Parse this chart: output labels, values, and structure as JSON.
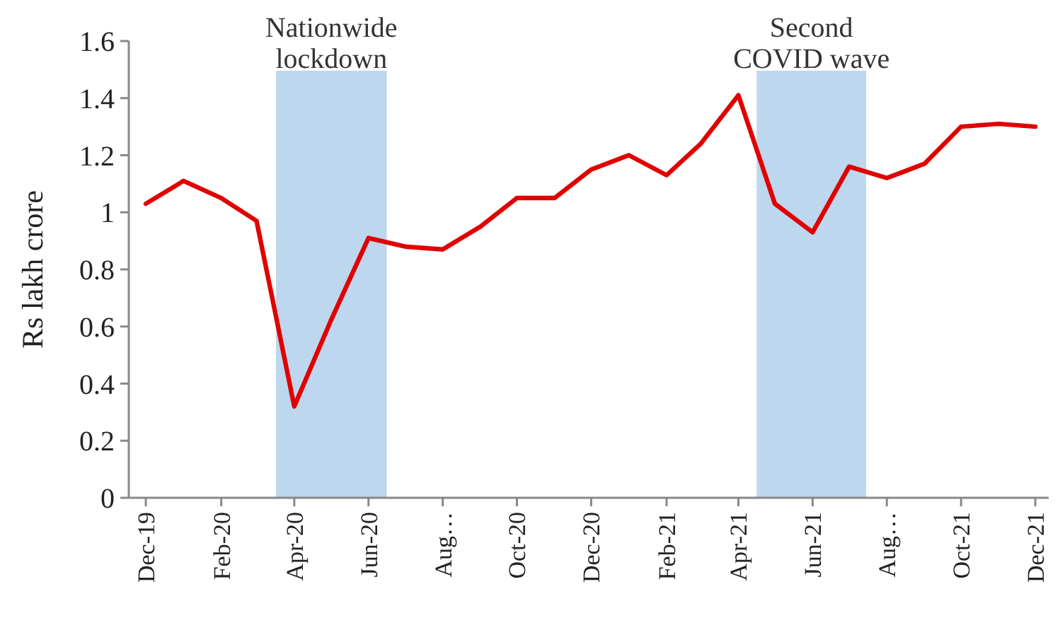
{
  "chart_data": {
    "type": "line",
    "ylabel": "Rs lakh crore",
    "x": [
      "2019-12",
      "2020-01",
      "2020-02",
      "2020-03",
      "2020-04",
      "2020-05",
      "2020-06",
      "2020-07",
      "2020-08",
      "2020-09",
      "2020-10",
      "2020-11",
      "2020-12",
      "2021-01",
      "2021-02",
      "2021-03",
      "2021-04",
      "2021-05",
      "2021-06",
      "2021-07",
      "2021-08",
      "2021-09",
      "2021-10",
      "2021-11",
      "2021-12"
    ],
    "series": [
      {
        "color": "#e00000",
        "values": [
          1.03,
          1.11,
          1.05,
          0.97,
          0.32,
          0.62,
          0.91,
          0.88,
          0.87,
          0.95,
          1.05,
          1.05,
          1.15,
          1.2,
          1.13,
          1.24,
          1.41,
          1.03,
          0.93,
          1.16,
          1.12,
          1.17,
          1.3,
          1.31,
          1.3
        ]
      }
    ],
    "xlim": [
      "2019-11-17",
      "2021-12-12"
    ],
    "xticks": [
      {
        "value": "2019-12",
        "label": "Dec-19"
      },
      {
        "value": "2020-02",
        "label": "Feb-20"
      },
      {
        "value": "2020-04",
        "label": "Apr-20"
      },
      {
        "value": "2020-06",
        "label": "Jun-20"
      },
      {
        "value": "2020-08",
        "label": "Aug…"
      },
      {
        "value": "2020-10",
        "label": "Oct-20"
      },
      {
        "value": "2020-12",
        "label": "Dec-20"
      },
      {
        "value": "2021-02",
        "label": "Feb-21"
      },
      {
        "value": "2021-04",
        "label": "Apr-21"
      },
      {
        "value": "2021-06",
        "label": "Jun-21"
      },
      {
        "value": "2021-08",
        "label": "Aug…"
      },
      {
        "value": "2021-10",
        "label": "Oct-21"
      },
      {
        "value": "2021-12",
        "label": "Dec-21"
      }
    ],
    "ylim": [
      0,
      1.6
    ],
    "yticks": [
      0,
      0.2,
      0.4,
      0.6,
      0.8,
      1,
      1.2,
      1.4,
      1.6
    ],
    "bands": [
      {
        "axis": "x",
        "from": "2020-03-17",
        "to": "2020-06-16",
        "label": "Nationwide lockdown",
        "color": "#bdd7ee"
      },
      {
        "axis": "x",
        "from": "2021-04-16",
        "to": "2021-07-15",
        "label": "Second COVID wave",
        "color": "#bdd7ee"
      }
    ],
    "grid": false,
    "marker": "none",
    "line_style": "solid"
  }
}
